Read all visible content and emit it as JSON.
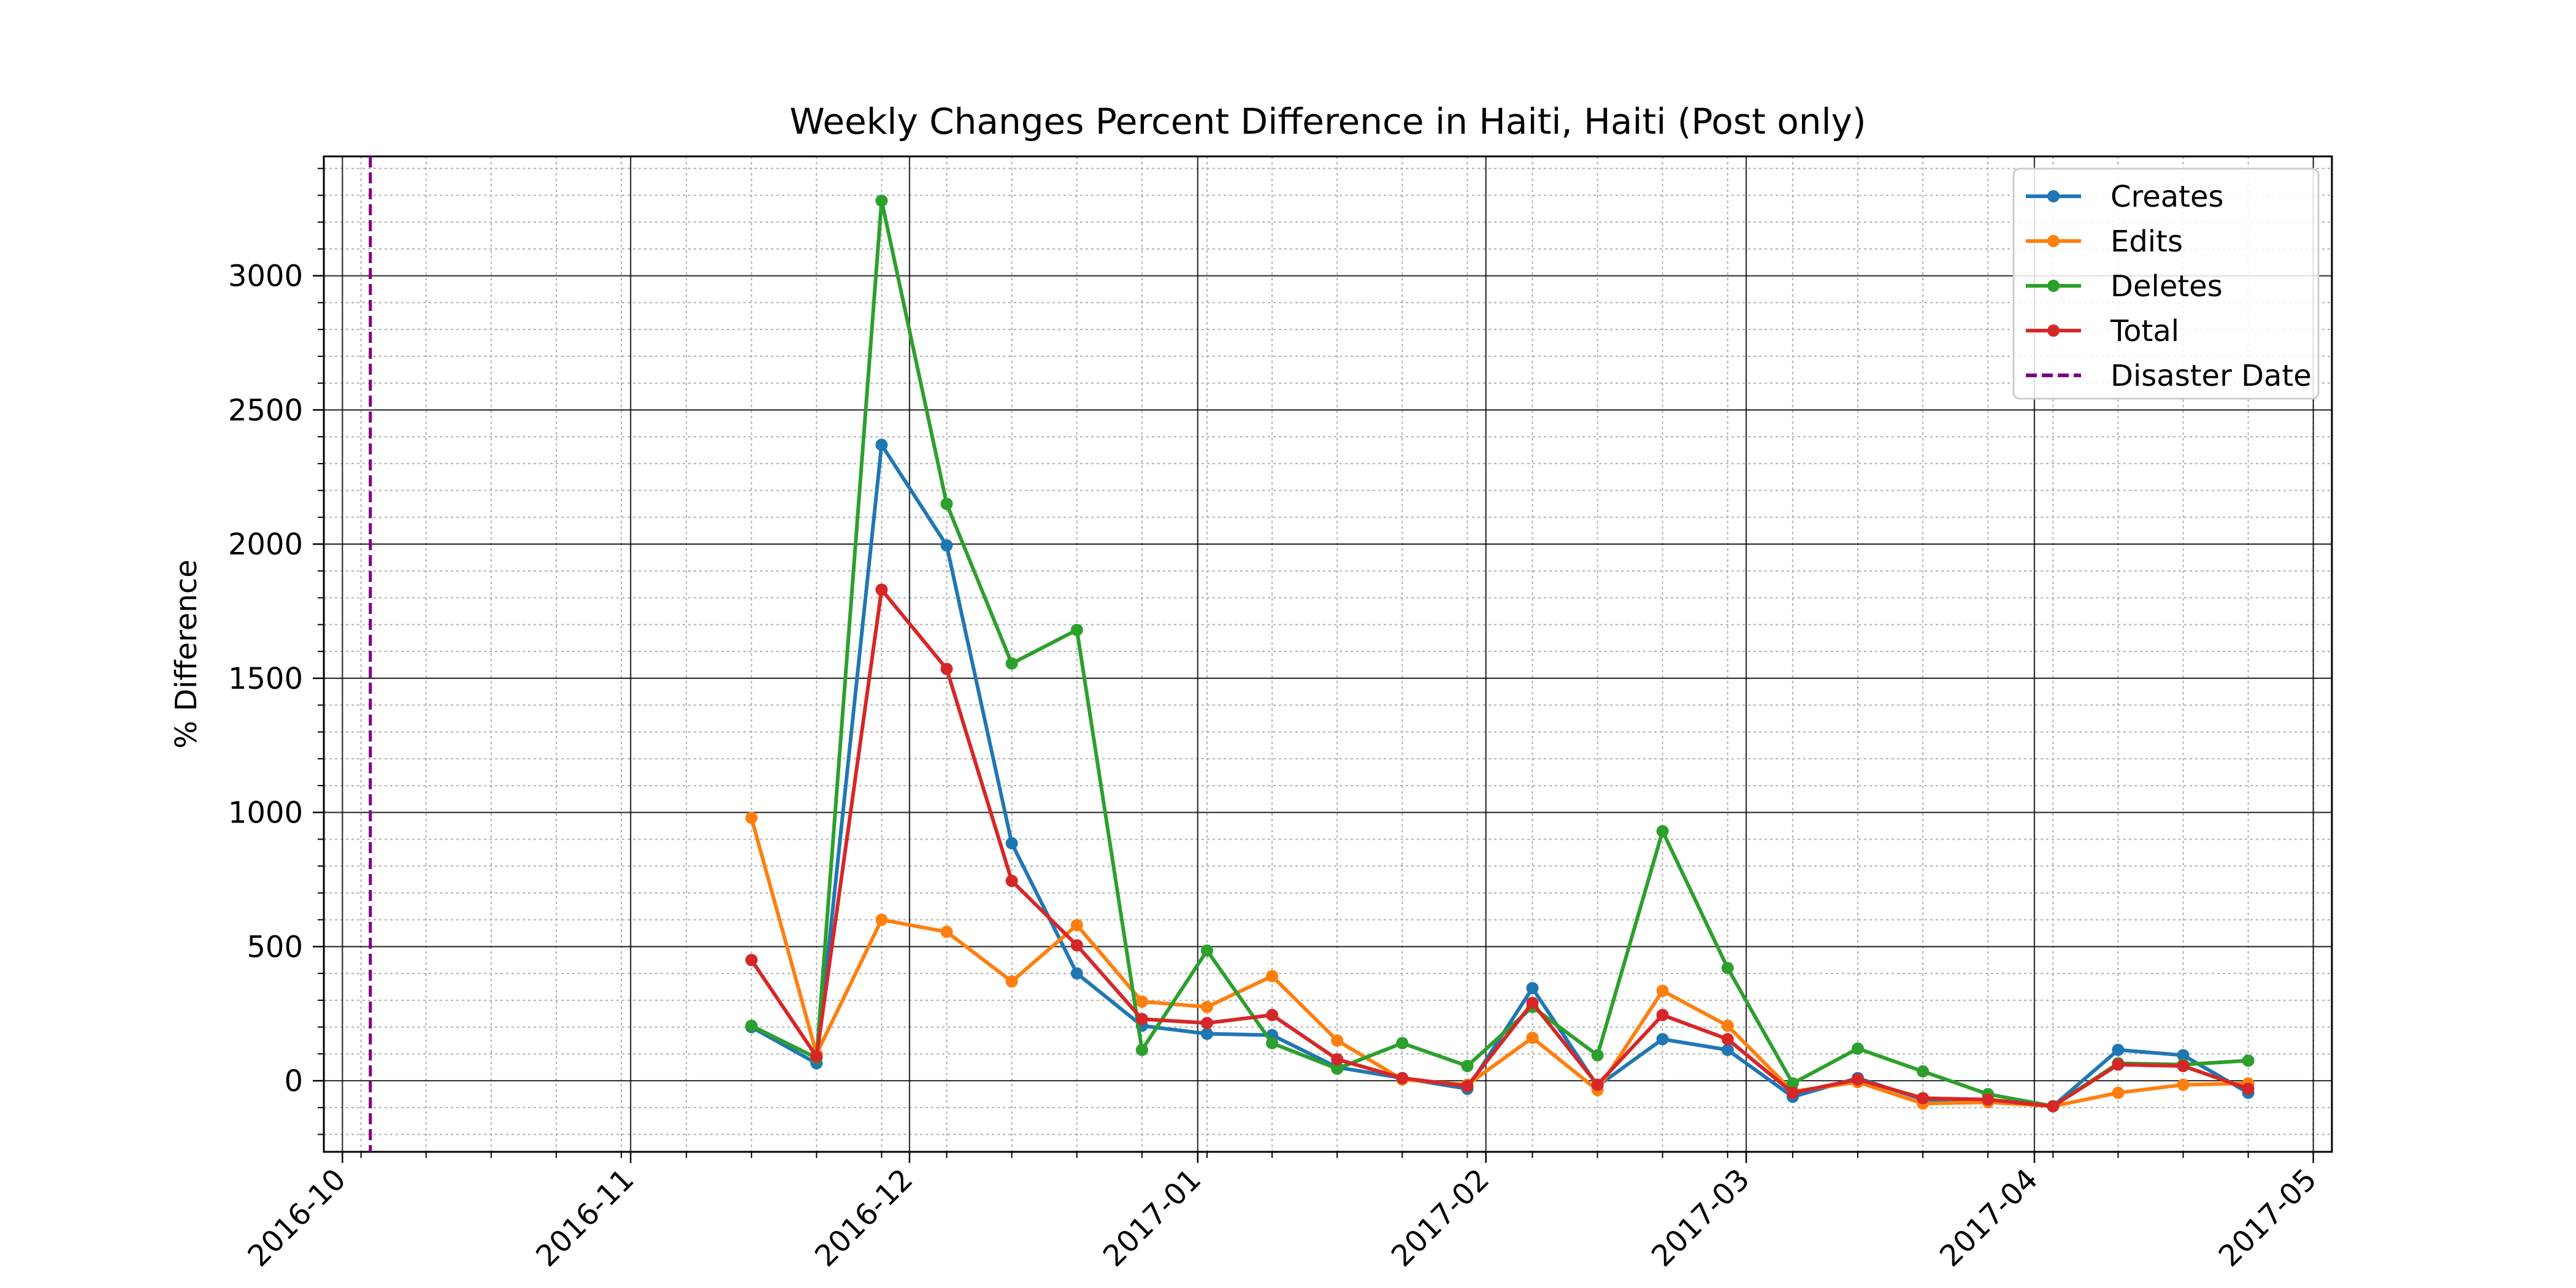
{
  "chart_data": {
    "type": "line",
    "title": "Weekly Changes Percent Difference in Haiti, Haiti (Post only)",
    "xlabel": "",
    "ylabel": "% Difference",
    "x_type": "date",
    "xlim": [
      "2016-09-29",
      "2017-05-03"
    ],
    "ylim": [
      -265,
      3445
    ],
    "x_ticks": [
      "2016-10-01",
      "2016-11-01",
      "2016-12-01",
      "2017-01-01",
      "2017-02-01",
      "2017-03-01",
      "2017-04-01",
      "2017-05-01"
    ],
    "x_tick_labels": [
      "2016-10",
      "2016-11",
      "2016-12",
      "2017-01",
      "2017-02",
      "2017-03",
      "2017-04",
      "2017-05"
    ],
    "y_ticks": [
      0,
      500,
      1000,
      1500,
      2000,
      2500,
      3000
    ],
    "y_tick_labels": [
      "0",
      "500",
      "1000",
      "1500",
      "2000",
      "2500",
      "3000"
    ],
    "grid": true,
    "legend_position": "top-right",
    "x": [
      "2016-11-14",
      "2016-11-21",
      "2016-11-28",
      "2016-12-05",
      "2016-12-12",
      "2016-12-19",
      "2016-12-26",
      "2017-01-02",
      "2017-01-09",
      "2017-01-16",
      "2017-01-23",
      "2017-01-30",
      "2017-02-06",
      "2017-02-13",
      "2017-02-20",
      "2017-02-27",
      "2017-03-06",
      "2017-03-13",
      "2017-03-20",
      "2017-03-27",
      "2017-04-03",
      "2017-04-10",
      "2017-04-17",
      "2017-04-24"
    ],
    "series": [
      {
        "name": "Creates",
        "color": "#1f77b4",
        "values": [
          200,
          65,
          2370,
          1995,
          885,
          400,
          205,
          175,
          170,
          50,
          10,
          -30,
          345,
          -20,
          155,
          115,
          -60,
          10,
          -70,
          -75,
          -95,
          115,
          95,
          -45
        ]
      },
      {
        "name": "Edits",
        "color": "#ff7f0e",
        "values": [
          980,
          100,
          600,
          555,
          370,
          580,
          295,
          275,
          390,
          150,
          5,
          -15,
          160,
          -35,
          335,
          205,
          -40,
          -5,
          -85,
          -80,
          -95,
          -45,
          -15,
          -10
        ]
      },
      {
        "name": "Deletes",
        "color": "#2ca02c",
        "values": [
          205,
          85,
          3280,
          2150,
          1555,
          1680,
          115,
          485,
          140,
          45,
          140,
          55,
          275,
          95,
          930,
          420,
          -10,
          120,
          35,
          -50,
          -95,
          65,
          60,
          75
        ]
      },
      {
        "name": "Total",
        "color": "#d62728",
        "values": [
          450,
          90,
          1830,
          1535,
          745,
          505,
          230,
          215,
          245,
          80,
          10,
          -20,
          290,
          -15,
          245,
          155,
          -45,
          5,
          -65,
          -70,
          -95,
          60,
          55,
          -30
        ]
      }
    ],
    "disaster_date": {
      "name": "Disaster Date",
      "x": "2016-10-04",
      "color": "#800080",
      "style": "dashed"
    }
  }
}
